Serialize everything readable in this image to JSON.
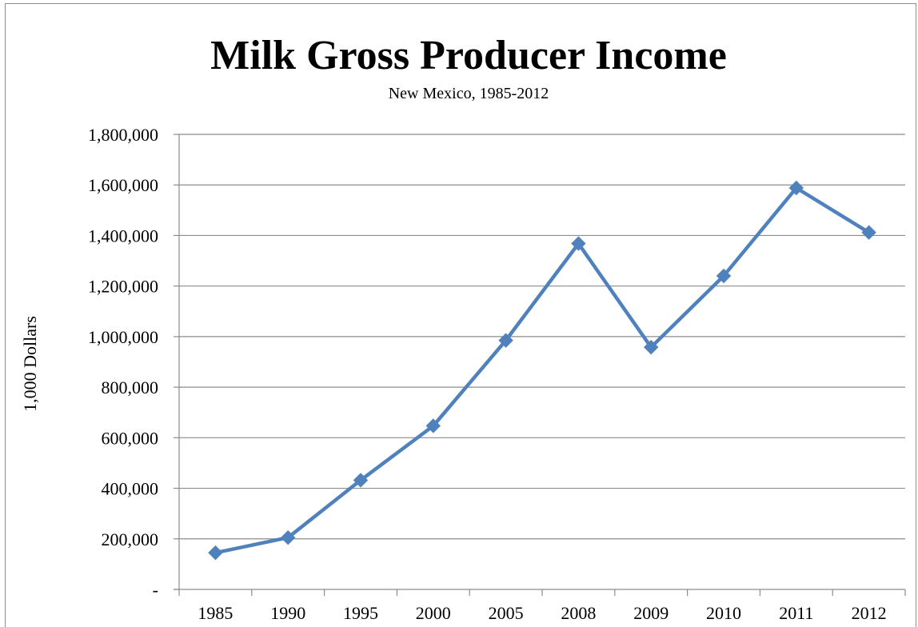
{
  "chart_data": {
    "type": "line",
    "title": "Milk Gross Producer Income",
    "subtitle": "New Mexico, 1985-2012",
    "xlabel": "",
    "ylabel": "1,000 Dollars",
    "categories": [
      "1985",
      "1990",
      "1995",
      "2000",
      "2005",
      "2008",
      "2009",
      "2010",
      "2011",
      "2012"
    ],
    "series": [
      {
        "values": [
          145000,
          205000,
          432000,
          647000,
          985000,
          1368000,
          958000,
          1240000,
          1588000,
          1412000
        ],
        "color": "#4F81BD",
        "marker": "diamond"
      }
    ],
    "ylim": [
      0,
      1800000
    ],
    "yticks": [
      0,
      200000,
      400000,
      600000,
      800000,
      1000000,
      1200000,
      1400000,
      1600000,
      1800000
    ],
    "ytick_labels": [
      "-",
      "200,000",
      "400,000",
      "600,000",
      "800,000",
      "1,000,000",
      "1,200,000",
      "1,400,000",
      "1,600,000",
      "1,800,000"
    ],
    "grid": true,
    "legend": "none"
  }
}
